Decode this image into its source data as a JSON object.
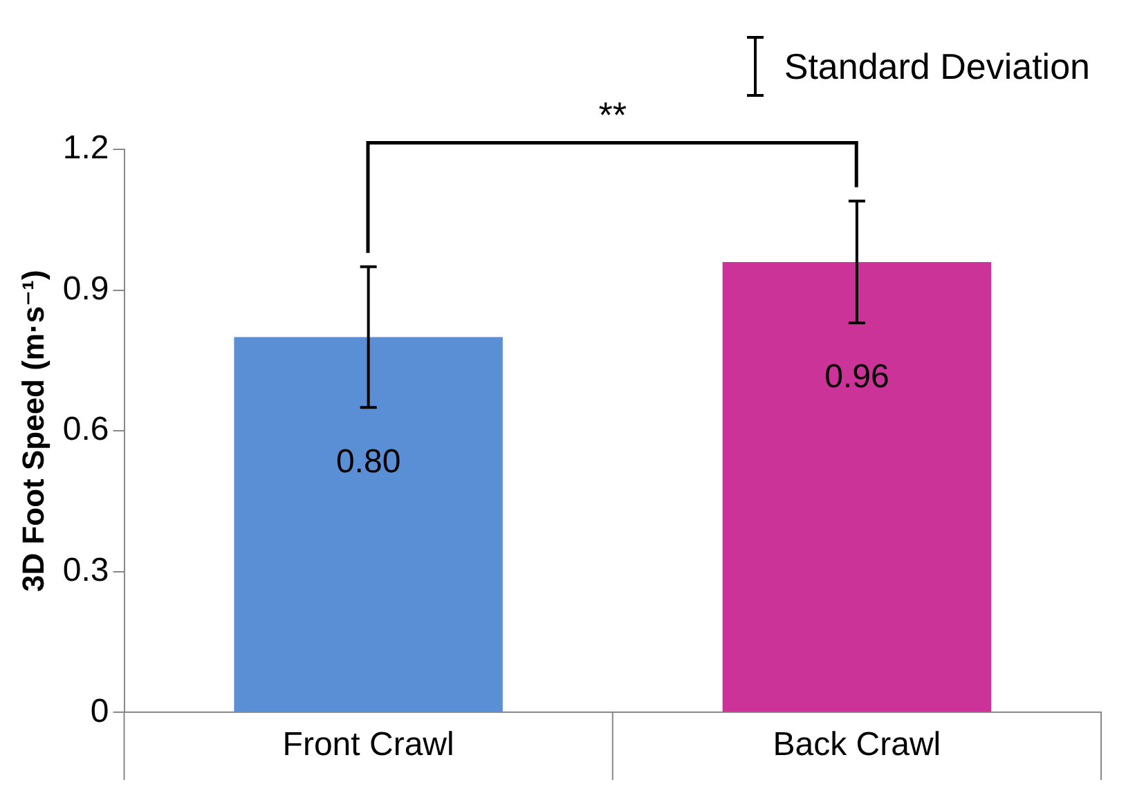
{
  "chart_data": {
    "type": "bar",
    "ylabel": "3D Foot Speed (m·s⁻¹)",
    "categories": [
      "Front Crawl",
      "Back Crawl"
    ],
    "values": [
      0.8,
      0.96
    ],
    "colors": [
      "#5a8fd6",
      "#cc3399"
    ],
    "errors": [
      0.15,
      0.13
    ],
    "value_labels": [
      "0.80",
      "0.96"
    ],
    "ylim": [
      0,
      1.2
    ],
    "yticks": [
      0,
      0.3,
      0.6,
      0.9,
      1.2
    ],
    "grid": false,
    "legend": false,
    "annotations": [
      "**",
      "Standard Deviation"
    ]
  }
}
